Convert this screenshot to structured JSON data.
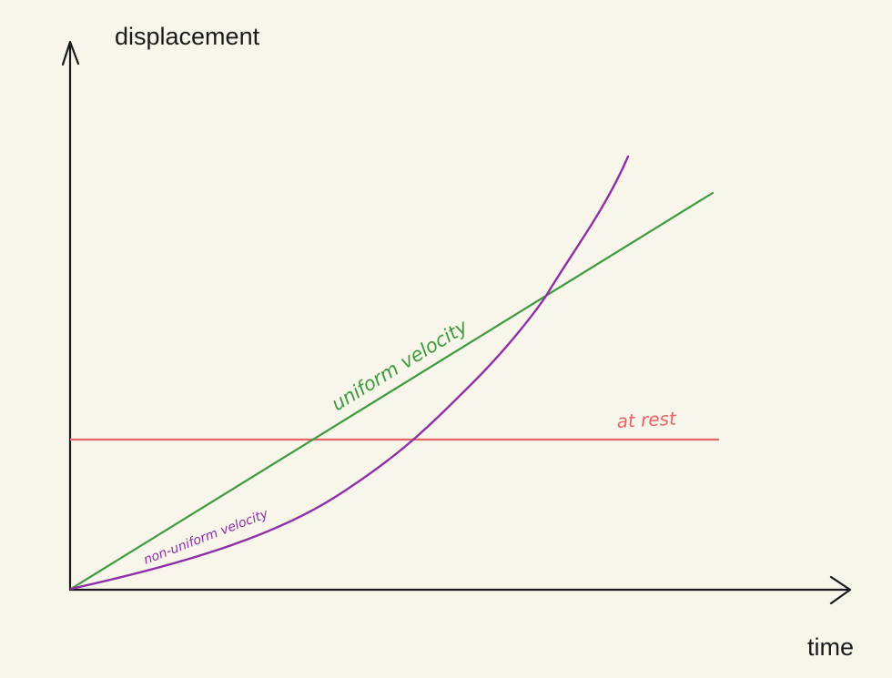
{
  "axes": {
    "y_label": "displacement",
    "x_label": "time"
  },
  "lines": {
    "at_rest": {
      "label": "at rest",
      "color": "#e8626a",
      "kind": "horizontal"
    },
    "uniform": {
      "label": "uniform velocity",
      "color": "#3e9a3e",
      "kind": "linear"
    },
    "non_uniform": {
      "label": "non-uniform velocity",
      "color": "#8e2fa8",
      "kind": "accelerating curve"
    }
  },
  "colors": {
    "background": "#f8f6ea",
    "axis": "#1a1a1a"
  }
}
